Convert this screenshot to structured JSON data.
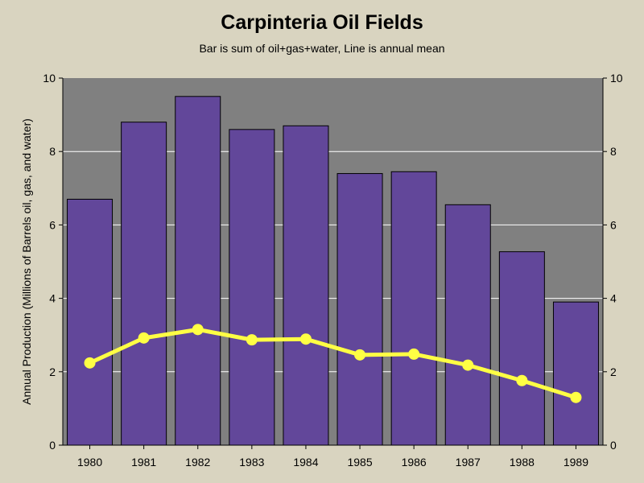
{
  "chart_data": {
    "type": "bar",
    "title": "Carpinteria Oil Fields",
    "subtitle": "Bar is sum of oil+gas+water, Line is annual mean",
    "ylabel": "Annual Production (Millions of Barrels oil, gas, and water)",
    "xlabel": "",
    "categories": [
      "1980",
      "1981",
      "1982",
      "1983",
      "1984",
      "1985",
      "1986",
      "1987",
      "1988",
      "1989"
    ],
    "series": [
      {
        "type": "bar",
        "values": [
          6.7,
          8.8,
          9.5,
          8.6,
          8.7,
          7.4,
          7.45,
          6.55,
          5.27,
          3.9
        ]
      },
      {
        "type": "line",
        "values": [
          2.24,
          2.92,
          3.15,
          2.87,
          2.89,
          2.46,
          2.48,
          2.18,
          1.76,
          1.3
        ]
      }
    ],
    "ylim": [
      0,
      10
    ],
    "yticks": [
      0,
      2,
      4,
      6,
      8,
      10
    ],
    "secondary_ylim": [
      0,
      10
    ],
    "grid": true,
    "colors": {
      "background": "#d9d4c0",
      "plot_background": "#808080",
      "bar_fill": "#62479a",
      "bar_stroke": "#000000",
      "line": "#ffff44",
      "grid": "#ffffff"
    }
  }
}
